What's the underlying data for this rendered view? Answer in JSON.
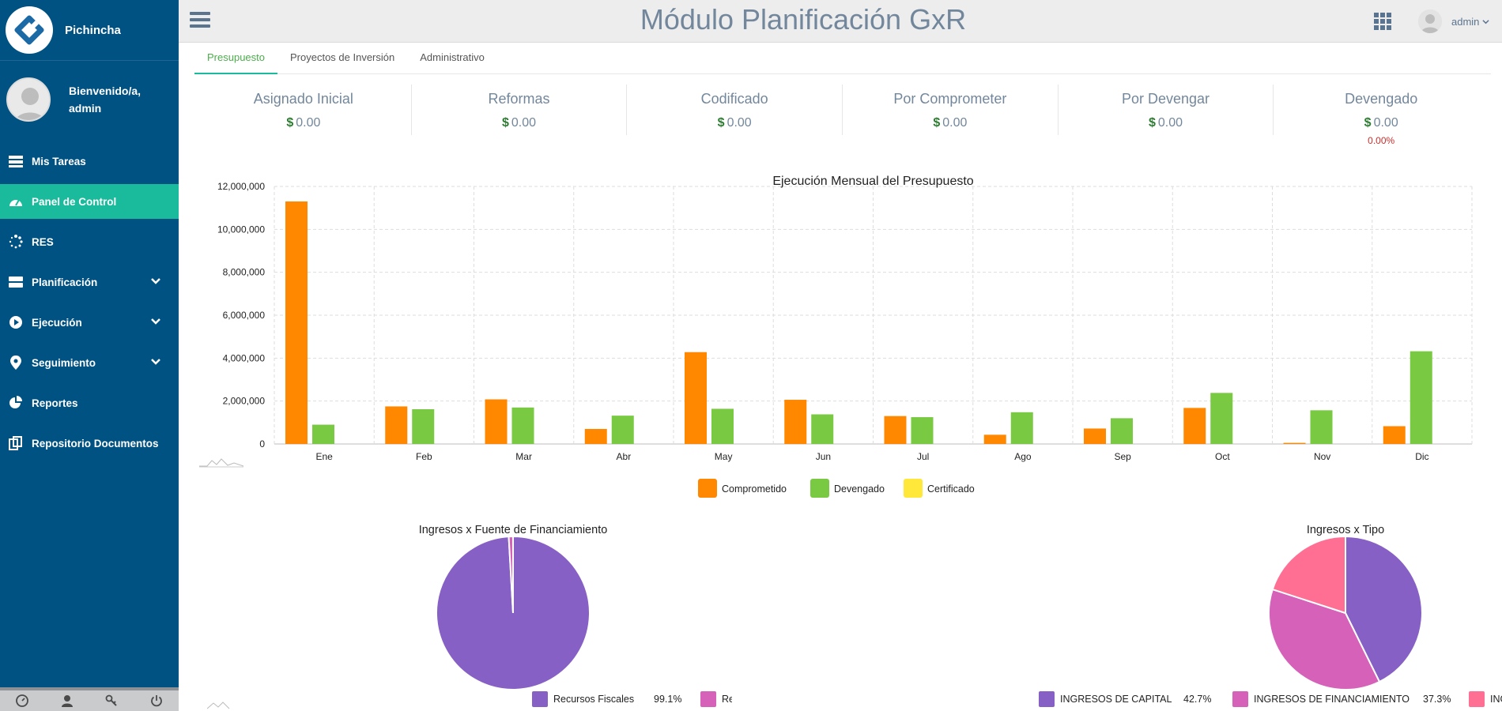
{
  "sidebar": {
    "brand": "Pichincha",
    "welcome_line1": "Bienvenido/a,",
    "welcome_line2": "admin",
    "items": [
      {
        "label": "Mis Tareas",
        "icon": "tasks-icon",
        "active": false,
        "expandable": false
      },
      {
        "label": "Panel de Control",
        "icon": "dashboard-icon",
        "active": true,
        "expandable": false
      },
      {
        "label": "RES",
        "icon": "spinner-icon",
        "active": false,
        "expandable": false
      },
      {
        "label": "Planificación",
        "icon": "server-icon",
        "active": false,
        "expandable": true
      },
      {
        "label": "Ejecución",
        "icon": "play-circle-icon",
        "active": false,
        "expandable": true
      },
      {
        "label": "Seguimiento",
        "icon": "map-marker-icon",
        "active": false,
        "expandable": true
      },
      {
        "label": "Reportes",
        "icon": "pie-chart-icon",
        "active": false,
        "expandable": false
      },
      {
        "label": "Repositorio Documentos",
        "icon": "files-icon",
        "active": false,
        "expandable": false
      }
    ],
    "footer_icons": [
      "dashboard-gauge-icon",
      "user-icon",
      "key-icon",
      "power-icon"
    ]
  },
  "header": {
    "title": "Módulo Planificación GxR",
    "user": "admin"
  },
  "tabs": [
    {
      "label": "Presupuesto",
      "active": true
    },
    {
      "label": "Proyectos de Inversión",
      "active": false
    },
    {
      "label": "Administrativo",
      "active": false
    }
  ],
  "stats": [
    {
      "title": "Asignado Inicial",
      "currency": "$",
      "value": "0.00"
    },
    {
      "title": "Reformas",
      "currency": "$",
      "value": "0.00"
    },
    {
      "title": "Codificado",
      "currency": "$",
      "value": "0.00"
    },
    {
      "title": "Por Comprometer",
      "currency": "$",
      "value": "0.00"
    },
    {
      "title": "Por Devengar",
      "currency": "$",
      "value": "0.00"
    },
    {
      "title": "Devengado",
      "currency": "$",
      "value": "0.00",
      "percent": "0.00%"
    }
  ],
  "chart_data": [
    {
      "type": "bar",
      "title": "Ejecución Mensual del Presupuesto",
      "categories": [
        "Ene",
        "Feb",
        "Mar",
        "Abr",
        "May",
        "Jun",
        "Jul",
        "Ago",
        "Sep",
        "Oct",
        "Nov",
        "Dic"
      ],
      "ylim": [
        0,
        12000000
      ],
      "yticks": [
        "0",
        "2,000,000",
        "4,000,000",
        "6,000,000",
        "8,000,000",
        "10,000,000",
        "12,000,000"
      ],
      "grid": true,
      "legend_position": "bottom",
      "series": [
        {
          "name": "Comprometido",
          "color": "#ff8800",
          "values": [
            11300000,
            1750000,
            2080000,
            700000,
            4280000,
            2060000,
            1300000,
            430000,
            720000,
            1680000,
            50000,
            830000
          ]
        },
        {
          "name": "Devengado",
          "color": "#7ac943",
          "values": [
            900000,
            1620000,
            1700000,
            1320000,
            1640000,
            1380000,
            1250000,
            1480000,
            1200000,
            2380000,
            1570000,
            4320000
          ]
        },
        {
          "name": "Certificado",
          "color": "#ffe83a",
          "values": [
            0,
            0,
            0,
            0,
            0,
            0,
            0,
            0,
            0,
            0,
            0,
            0
          ]
        }
      ]
    },
    {
      "type": "pie",
      "title": "Ingresos x Fuente de Financiamiento",
      "legend_position": "bottom",
      "slices": [
        {
          "label": "Recursos Fiscales",
          "value": 99.1,
          "display": "99.1%",
          "color": "#8660c5"
        },
        {
          "label": "Recursos Propios",
          "value": 0.9,
          "display": "0.9%",
          "color": "#d661b8"
        }
      ]
    },
    {
      "type": "pie",
      "title": "Ingresos x Tipo",
      "legend_position": "bottom",
      "slices": [
        {
          "label": "INGRESOS DE CAPITAL",
          "value": 42.7,
          "display": "42.7%",
          "color": "#8660c5"
        },
        {
          "label": "INGRESOS DE FINANCIAMIENTO",
          "value": 37.3,
          "display": "37.3%",
          "color": "#d661b8"
        },
        {
          "label": "INGRESOS CORRIENTES",
          "value": 20.0,
          "display": "20.0%",
          "color": "#ff6f94"
        }
      ]
    }
  ]
}
